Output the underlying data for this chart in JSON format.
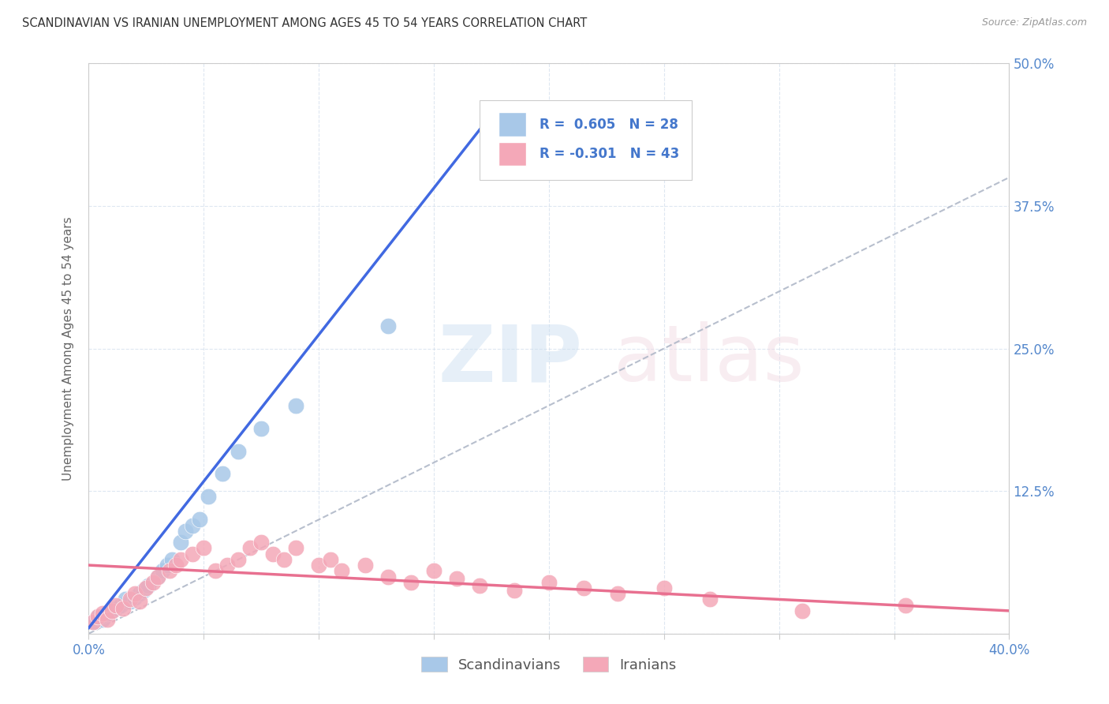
{
  "title": "SCANDINAVIAN VS IRANIAN UNEMPLOYMENT AMONG AGES 45 TO 54 YEARS CORRELATION CHART",
  "source": "Source: ZipAtlas.com",
  "ylabel": "Unemployment Among Ages 45 to 54 years",
  "xlim": [
    0.0,
    0.4
  ],
  "ylim": [
    0.0,
    0.5
  ],
  "xticks": [
    0.0,
    0.05,
    0.1,
    0.15,
    0.2,
    0.25,
    0.3,
    0.35,
    0.4
  ],
  "yticks": [
    0.0,
    0.125,
    0.25,
    0.375,
    0.5
  ],
  "xticklabels": [
    "0.0%",
    "",
    "",
    "",
    "",
    "",
    "",
    "",
    "40.0%"
  ],
  "yticklabels": [
    "",
    "12.5%",
    "25.0%",
    "37.5%",
    "50.0%"
  ],
  "scandinavian_color": "#a8c8e8",
  "iranian_color": "#f4a8b8",
  "line_scand_color": "#4169e1",
  "line_iran_color": "#e87090",
  "diagonal_color": "#b0b8c8",
  "legend_R_scand": "R =  0.605",
  "legend_N_scand": "N = 28",
  "legend_R_iran": "R = -0.301",
  "legend_N_iran": "N = 43",
  "scand_x": [
    0.002,
    0.004,
    0.006,
    0.008,
    0.01,
    0.012,
    0.014,
    0.016,
    0.018,
    0.02,
    0.022,
    0.024,
    0.026,
    0.03,
    0.032,
    0.034,
    0.036,
    0.04,
    0.042,
    0.045,
    0.048,
    0.052,
    0.058,
    0.065,
    0.075,
    0.09,
    0.13,
    0.175
  ],
  "scand_y": [
    0.01,
    0.015,
    0.012,
    0.018,
    0.02,
    0.022,
    0.025,
    0.03,
    0.028,
    0.032,
    0.035,
    0.038,
    0.042,
    0.05,
    0.055,
    0.06,
    0.065,
    0.08,
    0.09,
    0.095,
    0.1,
    0.12,
    0.14,
    0.16,
    0.18,
    0.2,
    0.27,
    0.45
  ],
  "iran_x": [
    0.002,
    0.004,
    0.006,
    0.008,
    0.01,
    0.012,
    0.015,
    0.018,
    0.02,
    0.022,
    0.025,
    0.028,
    0.03,
    0.035,
    0.038,
    0.04,
    0.045,
    0.05,
    0.055,
    0.06,
    0.065,
    0.07,
    0.075,
    0.08,
    0.085,
    0.09,
    0.1,
    0.105,
    0.11,
    0.12,
    0.13,
    0.14,
    0.15,
    0.16,
    0.17,
    0.185,
    0.2,
    0.215,
    0.23,
    0.25,
    0.27,
    0.31,
    0.355
  ],
  "iran_y": [
    0.01,
    0.015,
    0.018,
    0.012,
    0.02,
    0.025,
    0.022,
    0.03,
    0.035,
    0.028,
    0.04,
    0.045,
    0.05,
    0.055,
    0.06,
    0.065,
    0.07,
    0.075,
    0.055,
    0.06,
    0.065,
    0.075,
    0.08,
    0.07,
    0.065,
    0.075,
    0.06,
    0.065,
    0.055,
    0.06,
    0.05,
    0.045,
    0.055,
    0.048,
    0.042,
    0.038,
    0.045,
    0.04,
    0.035,
    0.04,
    0.03,
    0.02,
    0.025
  ],
  "scand_line_x0": 0.0,
  "scand_line_y0": 0.005,
  "scand_line_x1": 0.175,
  "scand_line_y1": 0.455,
  "iran_line_x0": 0.0,
  "iran_line_y0": 0.06,
  "iran_line_x1": 0.4,
  "iran_line_y1": 0.02
}
